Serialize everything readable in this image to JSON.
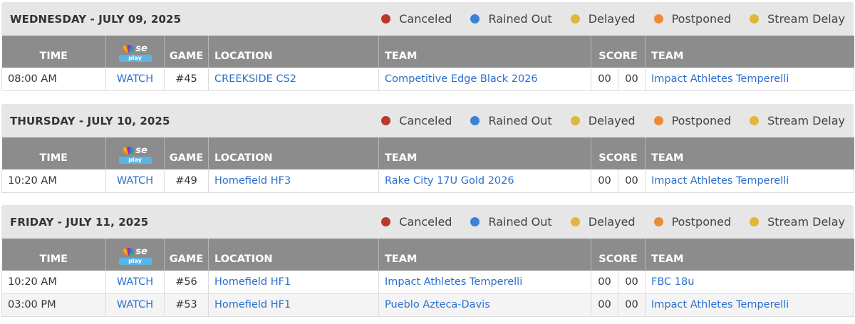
{
  "legend": [
    {
      "label": "Canceled",
      "color": "#b83a2d"
    },
    {
      "label": "Rained Out",
      "color": "#3b82d6"
    },
    {
      "label": "Delayed",
      "color": "#e0b73a"
    },
    {
      "label": "Postponed",
      "color": "#ea8b3a"
    },
    {
      "label": "Stream Delay",
      "color": "#e0b73a"
    }
  ],
  "headers": {
    "time": "TIME",
    "logo_text": "se",
    "logo_sub": "play",
    "game": "GAME",
    "location": "LOCATION",
    "team": "TEAM",
    "score": "SCORE",
    "team2": "TEAM"
  },
  "days": [
    {
      "title": "WEDNESDAY - JULY 09, 2025",
      "games": [
        {
          "time": "08:00 AM",
          "watch": "WATCH",
          "game": "#45",
          "location": "CREEKSIDE CS2",
          "team1": "Competitive Edge Black 2026",
          "score1": "00",
          "score2": "00",
          "team2": "Impact Athletes Temperelli"
        }
      ]
    },
    {
      "title": "THURSDAY - JULY 10, 2025",
      "games": [
        {
          "time": "10:20 AM",
          "watch": "WATCH",
          "game": "#49",
          "location": "Homefield HF3",
          "team1": "Rake City 17U Gold 2026",
          "score1": "00",
          "score2": "00",
          "team2": "Impact Athletes Temperelli"
        }
      ]
    },
    {
      "title": "FRIDAY - JULY 11, 2025",
      "games": [
        {
          "time": "10:20 AM",
          "watch": "WATCH",
          "game": "#56",
          "location": "Homefield HF1",
          "team1": "Impact Athletes Temperelli",
          "score1": "00",
          "score2": "00",
          "team2": "FBC 18u"
        },
        {
          "time": "03:00 PM",
          "watch": "WATCH",
          "game": "#53",
          "location": "Homefield HF1",
          "team1": "Pueblo Azteca-Davis",
          "score1": "00",
          "score2": "00",
          "team2": "Impact Athletes Temperelli"
        }
      ]
    }
  ]
}
